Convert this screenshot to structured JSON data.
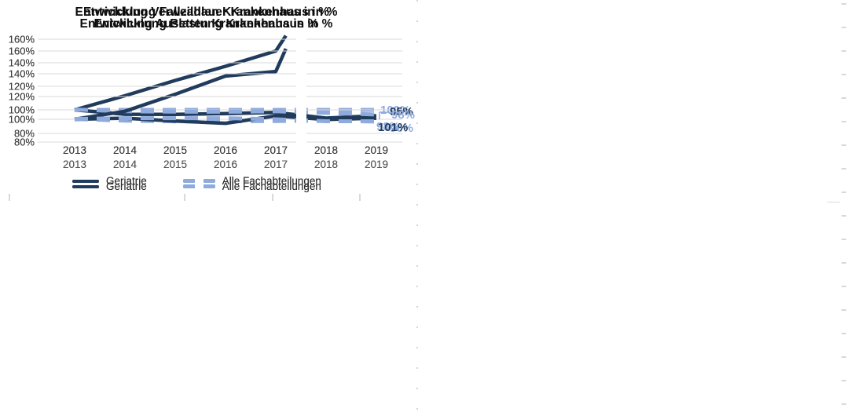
{
  "page": {
    "background": "#ffffff"
  },
  "colors": {
    "geriatrie": "#203b5c",
    "alle_fachabteilungen": "#8faadc",
    "gridline": "#d9d9d9",
    "axis_text": "#3a3a3a",
    "axis_text_muted": "#595959",
    "title_text": "#0d0d0d",
    "seam": "#ffffff",
    "border_dots": "#c9c9c9"
  },
  "legend": {
    "geriatrie": "Geriatrie",
    "alle": "Alle Fachabteilungen"
  },
  "chart_data": [
    {
      "type": "line",
      "title": "Entwicklung Fallzahlen Krankenhaus in %",
      "x_categories": [
        "2013",
        "2014",
        "2015",
        "2016",
        "2017",
        "2018",
        "2019"
      ],
      "y_tick_labels": [
        "160%",
        "140%",
        "120%",
        "100%",
        "80%"
      ],
      "y_tick_values": [
        160,
        140,
        120,
        100,
        80
      ],
      "ylim": [
        80,
        164
      ],
      "grid": true,
      "legend_position": "bottom",
      "series": [
        {
          "name": "Geriatrie",
          "line_style": "solid",
          "color_key": "geriatrie",
          "points": [
            [
              2013,
              100
            ],
            [
              2014,
              112
            ],
            [
              2015,
              125
            ],
            [
              2016,
              137
            ],
            [
              2017,
              150
            ],
            [
              2017.2,
              163
            ]
          ]
        },
        {
          "name": "Alle Fachabteilungen",
          "line_style": "dashed",
          "color_key": "alle_fachabteilungen",
          "points": [
            [
              2013,
              100
            ],
            [
              2014,
              100
            ],
            [
              2015,
              100
            ],
            [
              2016,
              100
            ],
            [
              2017,
              100
            ],
            [
              2018,
              100
            ],
            [
              2019,
              100
            ]
          ]
        }
      ],
      "end_labels": [
        {
          "text": "100%",
          "color_key": "alle_fachabteilungen"
        }
      ]
    },
    {
      "type": "line",
      "title": "Entwicklung Verweildauer Krankenhaus in %",
      "x_categories": [
        "2013",
        "2014",
        "2015",
        "2016",
        "2017",
        "2018",
        "2019"
      ],
      "y_tick_labels": [
        "160%",
        "140%",
        "120%",
        "100%",
        "80%"
      ],
      "y_tick_values": [
        160,
        140,
        120,
        100,
        80
      ],
      "ylim": [
        80,
        164
      ],
      "grid": true,
      "legend_position": "bottom",
      "series": [
        {
          "name": "Geriatrie",
          "line_style": "solid",
          "color_key": "geriatrie",
          "points": [
            [
              2013,
              100
            ],
            [
              2014,
              96.3
            ],
            [
              2015,
              96.2
            ],
            [
              2016,
              96.8
            ],
            [
              2017,
              97.8
            ],
            [
              2018,
              93
            ],
            [
              2019,
              95
            ]
          ]
        },
        {
          "name": "Alle Fachabteilungen",
          "line_style": "dashed",
          "color_key": "alle_fachabteilungen",
          "points": [
            [
              2013,
              100.3
            ],
            [
              2014,
              98.8
            ],
            [
              2015,
              98.5
            ],
            [
              2016,
              98.4
            ],
            [
              2017,
              98.8
            ],
            [
              2018,
              97.5
            ],
            [
              2019,
              96
            ]
          ]
        }
      ],
      "end_labels": [
        {
          "text": "95%",
          "color_key": "geriatrie"
        },
        {
          "text": "96%",
          "color_key": "alle_fachabteilungen"
        }
      ]
    },
    {
      "type": "line",
      "title": "Entwicklung Betten Krankenhaus in %",
      "x_categories": [
        "2013",
        "2014",
        "2015",
        "2016",
        "2017",
        "2018",
        "2019"
      ],
      "y_tick_labels": [
        "160%",
        "140%",
        "120%",
        "100%",
        "80%"
      ],
      "y_tick_values": [
        160,
        140,
        120,
        100,
        80
      ],
      "ylim": [
        80,
        164
      ],
      "grid": true,
      "legend_position": "bottom",
      "series": [
        {
          "name": "Geriatrie",
          "line_style": "solid",
          "color_key": "geriatrie",
          "points": [
            [
              2013,
              100
            ],
            [
              2014,
              107
            ],
            [
              2015,
              122
            ],
            [
              2016,
              138
            ],
            [
              2017,
              142
            ],
            [
              2017.2,
              162
            ]
          ]
        },
        {
          "name": "Alle Fachabteilungen",
          "line_style": "dashed",
          "color_key": "alle_fachabteilungen",
          "points": [
            [
              2013,
              100.3
            ],
            [
              2014,
              98.8
            ],
            [
              2015,
              98.2
            ],
            [
              2016,
              98.2
            ],
            [
              2017,
              98.5
            ],
            [
              2018,
              98.8
            ],
            [
              2019,
              98
            ]
          ]
        }
      ],
      "end_labels": [
        {
          "text": "98%",
          "color_key": "alle_fachabteilungen"
        }
      ]
    },
    {
      "type": "line",
      "title": "Entwicklung Auslastung Krankenhaus in %",
      "x_categories": [
        "2013",
        "2014",
        "2015",
        "2016",
        "2017",
        "2018",
        "2019"
      ],
      "y_tick_labels": [
        "160%",
        "140%",
        "120%",
        "100%",
        "80%"
      ],
      "y_tick_values": [
        160,
        140,
        120,
        100,
        80
      ],
      "ylim": [
        80,
        164
      ],
      "grid": true,
      "legend_position": "bottom",
      "series": [
        {
          "name": "Geriatrie",
          "line_style": "solid",
          "color_key": "geriatrie",
          "points": [
            [
              2013,
              100
            ],
            [
              2014,
              101
            ],
            [
              2015,
              98.5
            ],
            [
              2016,
              96.5
            ],
            [
              2017,
              103
            ],
            [
              2018,
              99.8
            ],
            [
              2019,
              101
            ]
          ]
        },
        {
          "name": "Alle Fachabteilungen",
          "line_style": "dashed",
          "color_key": "alle_fachabteilungen",
          "points": [
            [
              2013,
              100.3
            ],
            [
              2014,
              101
            ],
            [
              2015,
              101
            ],
            [
              2016,
              101
            ],
            [
              2017,
              100
            ],
            [
              2018,
              98.3
            ],
            [
              2019,
              98.3
            ]
          ]
        }
      ],
      "end_labels": [
        {
          "text": "98%",
          "color_key": "alle_fachabteilungen"
        },
        {
          "text": "101%",
          "color_key": "geriatrie"
        }
      ]
    }
  ]
}
